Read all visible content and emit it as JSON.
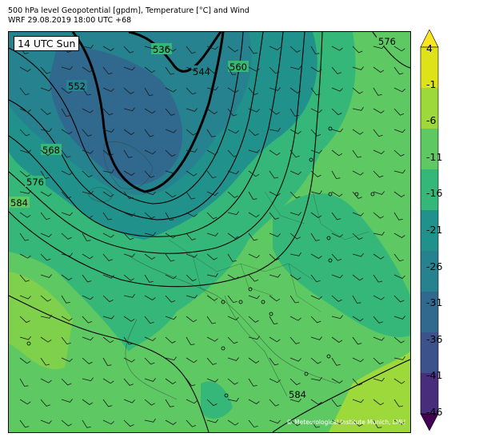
{
  "header": {
    "title_line1": "500 hPa level Geopotential [gpdm], Temperature [°C] and Wind",
    "title_line2": "WRF 29.08.2019 18:00 UTC +68"
  },
  "map": {
    "time_label": "14 UTC Sun",
    "credit": "© Meteorological Institute Munich, LMU",
    "contour_labels": [
      "536",
      "544",
      "552",
      "560",
      "568",
      "576",
      "584",
      "576",
      "584"
    ]
  },
  "colorbar": {
    "tick_labels": [
      "4",
      "-1",
      "-6",
      "-11",
      "-16",
      "-21",
      "-26",
      "-31",
      "-36",
      "-41",
      "-46"
    ],
    "colors": [
      "#f8e621",
      "#dde318",
      "#9dd93b",
      "#5ec962",
      "#35b779",
      "#21918c",
      "#26828e",
      "#31688e",
      "#3b528b",
      "#472d7b",
      "#440154"
    ]
  }
}
